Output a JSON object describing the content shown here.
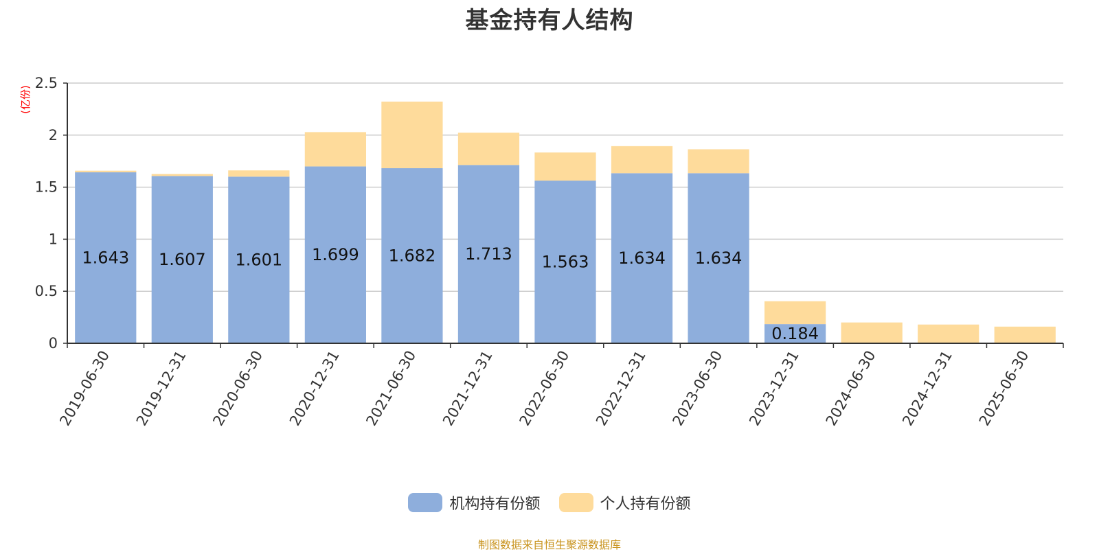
{
  "chart_data": {
    "type": "bar",
    "stacked": true,
    "title": "基金持有人结构",
    "ylabel": "(亿份)",
    "ylim": [
      0,
      2.5
    ],
    "yticks": [
      "0",
      "0.5",
      "1",
      "1.5",
      "2",
      "2.5"
    ],
    "grid": true,
    "legend_position": "bottom",
    "categories": [
      "2019-06-30",
      "2019-12-31",
      "2020-06-30",
      "2020-12-31",
      "2021-06-30",
      "2021-12-31",
      "2022-06-30",
      "2022-12-31",
      "2023-06-30",
      "2023-12-31",
      "2024-06-30",
      "2024-12-31",
      "2025-06-30"
    ],
    "series": [
      {
        "name": "机构持有份额",
        "color": "#8eaedc",
        "values": [
          1.643,
          1.607,
          1.601,
          1.699,
          1.682,
          1.713,
          1.563,
          1.634,
          1.634,
          0.184,
          0,
          0,
          0
        ],
        "labels": [
          "1.643",
          "1.607",
          "1.601",
          "1.699",
          "1.682",
          "1.713",
          "1.563",
          "1.634",
          "1.634",
          "0.184",
          "",
          "",
          ""
        ]
      },
      {
        "name": "个人持有份额",
        "color": "#fedb9b",
        "values": [
          0.015,
          0.02,
          0.06,
          0.33,
          0.64,
          0.31,
          0.27,
          0.26,
          0.23,
          0.22,
          0.2,
          0.18,
          0.16
        ]
      }
    ]
  },
  "footer": {
    "source": "制图数据来自恒生聚源数据库"
  },
  "colors": {
    "axis_label": "#ff0000",
    "source": "#c9941f"
  }
}
